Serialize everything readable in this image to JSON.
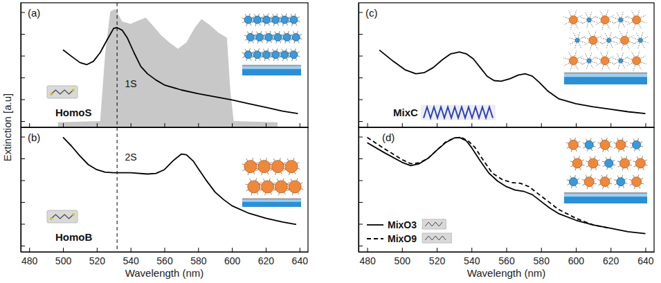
{
  "chart_data": [
    {
      "type": "line",
      "panel_label": "(a)",
      "sample_label": "HomoS",
      "ylabel": "Extinction [a.u]",
      "xlim": [
        475,
        645
      ],
      "ylim": [
        0,
        1
      ],
      "xticks": [
        480,
        500,
        520,
        540,
        560,
        580,
        600,
        620,
        640
      ],
      "yticks": [
        0.05,
        0.225,
        0.4,
        0.575,
        0.75,
        0.925
      ],
      "tick_labels": false,
      "vline": 532,
      "annotations": [
        {
          "text": "1S",
          "x": 536.6,
          "y": 0.35
        }
      ],
      "series": [
        {
          "type": "area",
          "color": "#c8c8c8",
          "x": [
            497,
            522,
            525,
            528,
            531,
            535,
            540,
            545,
            549,
            553,
            558,
            563,
            568,
            573,
            578,
            582,
            587,
            592,
            597,
            599,
            601,
            627
          ],
          "values": [
            0.04,
            0.05,
            0.6,
            0.93,
            0.95,
            0.85,
            0.83,
            0.86,
            0.88,
            0.82,
            0.74,
            0.68,
            0.63,
            0.68,
            0.8,
            0.87,
            0.82,
            0.76,
            0.72,
            0.3,
            0.05,
            0.04
          ]
        },
        {
          "type": "line",
          "color": "#000000",
          "line_style": "solid",
          "x": [
            500,
            505,
            510,
            514,
            518,
            522,
            526,
            530,
            532,
            535,
            538,
            542,
            546,
            550,
            555,
            560,
            570,
            580,
            590,
            600,
            610,
            620,
            630,
            639
          ],
          "values": [
            0.622,
            0.57,
            0.52,
            0.503,
            0.53,
            0.6,
            0.7,
            0.795,
            0.8,
            0.78,
            0.72,
            0.6,
            0.49,
            0.43,
            0.38,
            0.34,
            0.3,
            0.27,
            0.245,
            0.22,
            0.19,
            0.16,
            0.13,
            0.11
          ]
        }
      ]
    },
    {
      "type": "line",
      "panel_label": "(b)",
      "sample_label": "HomoB",
      "xlabel": "Wavelength (nm)",
      "xlim": [
        475,
        645
      ],
      "ylim": [
        0,
        1
      ],
      "xticks": [
        480,
        500,
        520,
        540,
        560,
        580,
        600,
        620,
        640
      ],
      "yticks": [
        0.05,
        0.225,
        0.4,
        0.575,
        0.75,
        0.925
      ],
      "tick_labels": "x",
      "vline": 532,
      "annotations": [
        {
          "text": "2S",
          "x": 536.6,
          "y": 0.76
        }
      ],
      "series": [
        {
          "type": "line",
          "color": "#000000",
          "line_style": "solid",
          "x": [
            500,
            505,
            510,
            515,
            520,
            525,
            530,
            540,
            550,
            555,
            560,
            565,
            570,
            573,
            577,
            580,
            585,
            590,
            595,
            600,
            610,
            620,
            630,
            638
          ],
          "values": [
            0.92,
            0.85,
            0.77,
            0.7,
            0.66,
            0.64,
            0.635,
            0.635,
            0.625,
            0.63,
            0.66,
            0.73,
            0.785,
            0.78,
            0.73,
            0.67,
            0.57,
            0.48,
            0.42,
            0.37,
            0.31,
            0.27,
            0.24,
            0.22
          ]
        }
      ]
    },
    {
      "type": "line",
      "panel_label": "(c)",
      "sample_label": "MixC",
      "xlim": [
        475,
        645
      ],
      "ylim": [
        0,
        1
      ],
      "xticks": [
        480,
        500,
        520,
        540,
        560,
        580,
        600,
        620,
        640
      ],
      "yticks": [
        0.05,
        0.225,
        0.4,
        0.575,
        0.75,
        0.925
      ],
      "tick_labels": false,
      "series": [
        {
          "type": "line",
          "color": "#000000",
          "line_style": "solid",
          "x": [
            487,
            495,
            502,
            508,
            513,
            518,
            523,
            528,
            533,
            537,
            541,
            545,
            549,
            553,
            557,
            562,
            567,
            571,
            575,
            579,
            584,
            590,
            600,
            610,
            620,
            630,
            640
          ],
          "values": [
            0.62,
            0.53,
            0.46,
            0.43,
            0.44,
            0.48,
            0.54,
            0.59,
            0.605,
            0.59,
            0.55,
            0.48,
            0.41,
            0.375,
            0.37,
            0.39,
            0.42,
            0.43,
            0.41,
            0.36,
            0.29,
            0.23,
            0.19,
            0.165,
            0.145,
            0.125,
            0.11
          ]
        }
      ]
    },
    {
      "type": "line",
      "panel_label": "(d)",
      "xlabel": "Wavelength (nm)",
      "legend": "lower left",
      "xlim": [
        475,
        645
      ],
      "ylim": [
        0,
        1
      ],
      "xticks": [
        480,
        500,
        520,
        540,
        560,
        580,
        600,
        620,
        640
      ],
      "yticks": [
        0.05,
        0.225,
        0.4,
        0.575,
        0.75,
        0.925
      ],
      "tick_labels": "x",
      "series": [
        {
          "name": "MixO3",
          "type": "line",
          "color": "#000000",
          "line_style": "solid",
          "x": [
            480,
            490,
            500,
            505,
            510,
            515,
            520,
            525,
            530,
            533,
            537,
            540,
            545,
            550,
            555,
            560,
            565,
            570,
            575,
            580,
            585,
            590,
            600,
            610,
            620,
            630,
            640
          ],
          "values": [
            0.876,
            0.795,
            0.719,
            0.692,
            0.708,
            0.751,
            0.816,
            0.876,
            0.914,
            0.919,
            0.892,
            0.838,
            0.73,
            0.632,
            0.568,
            0.524,
            0.497,
            0.486,
            0.459,
            0.405,
            0.351,
            0.308,
            0.254,
            0.216,
            0.189,
            0.162,
            0.146
          ]
        },
        {
          "name": "MixO9",
          "type": "line",
          "color": "#000000",
          "line_style": "dashed",
          "x": [
            480,
            490,
            500,
            505,
            510,
            515,
            520,
            525,
            530,
            534,
            538,
            542,
            547,
            552,
            558,
            563,
            568,
            573,
            578,
            585,
            590,
            600,
            610,
            620
          ],
          "values": [
            0.919,
            0.827,
            0.741,
            0.708,
            0.714,
            0.751,
            0.816,
            0.881,
            0.914,
            0.919,
            0.892,
            0.838,
            0.73,
            0.632,
            0.578,
            0.557,
            0.551,
            0.524,
            0.47,
            0.395,
            0.341,
            0.27,
            0.216,
            0.189
          ]
        }
      ]
    }
  ]
}
